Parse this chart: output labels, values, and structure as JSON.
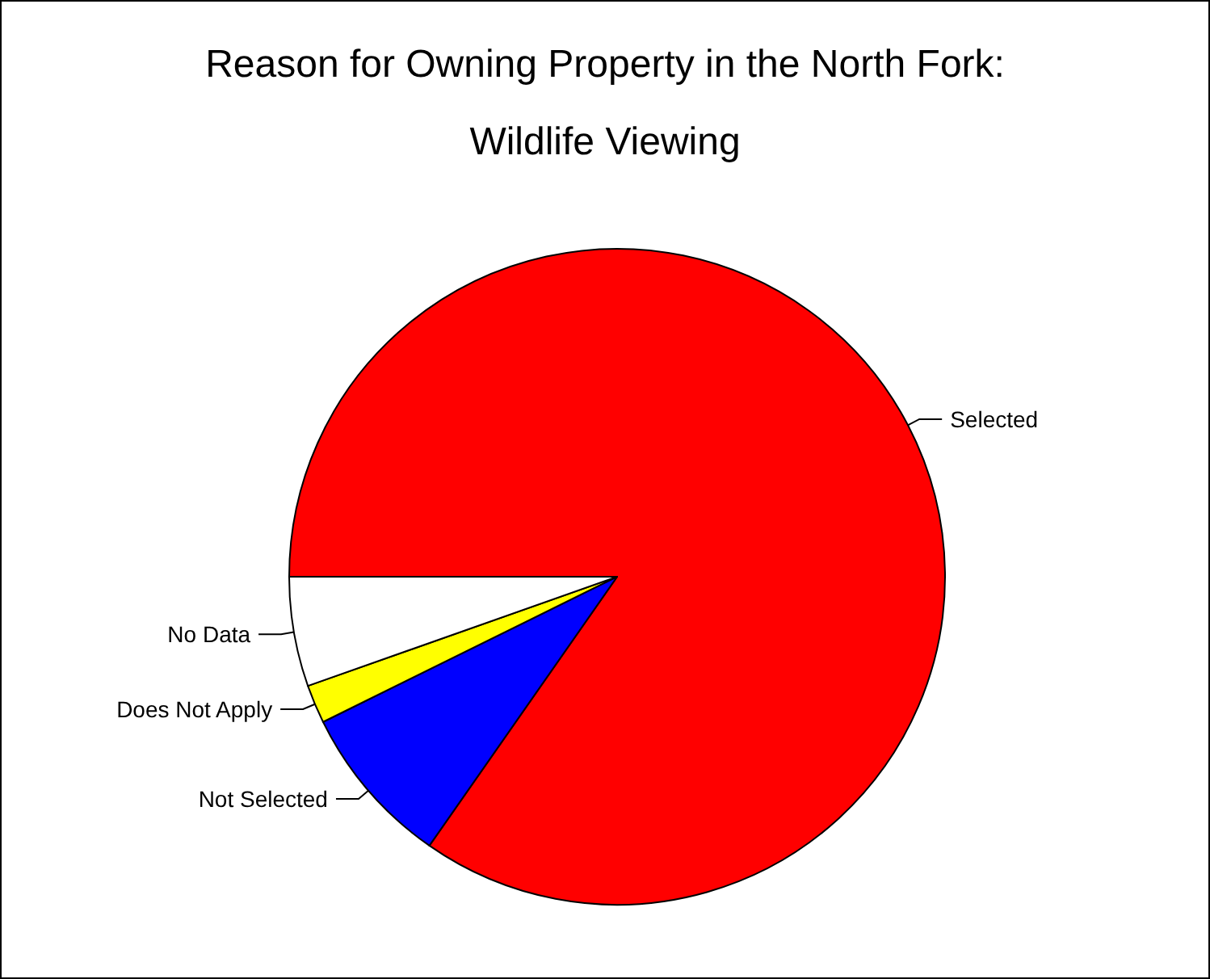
{
  "chart_data": {
    "type": "pie",
    "title": "Reason for Owning Property in the North Fork:",
    "subtitle": "Wildlife Viewing",
    "categories": [
      "Selected",
      "Not Selected",
      "Does Not Apply",
      "No Data"
    ],
    "values": [
      84.7,
      8.0,
      1.9,
      5.4
    ],
    "colors": [
      "#ff0000",
      "#0000ff",
      "#ffff00",
      "#ffffff"
    ]
  }
}
